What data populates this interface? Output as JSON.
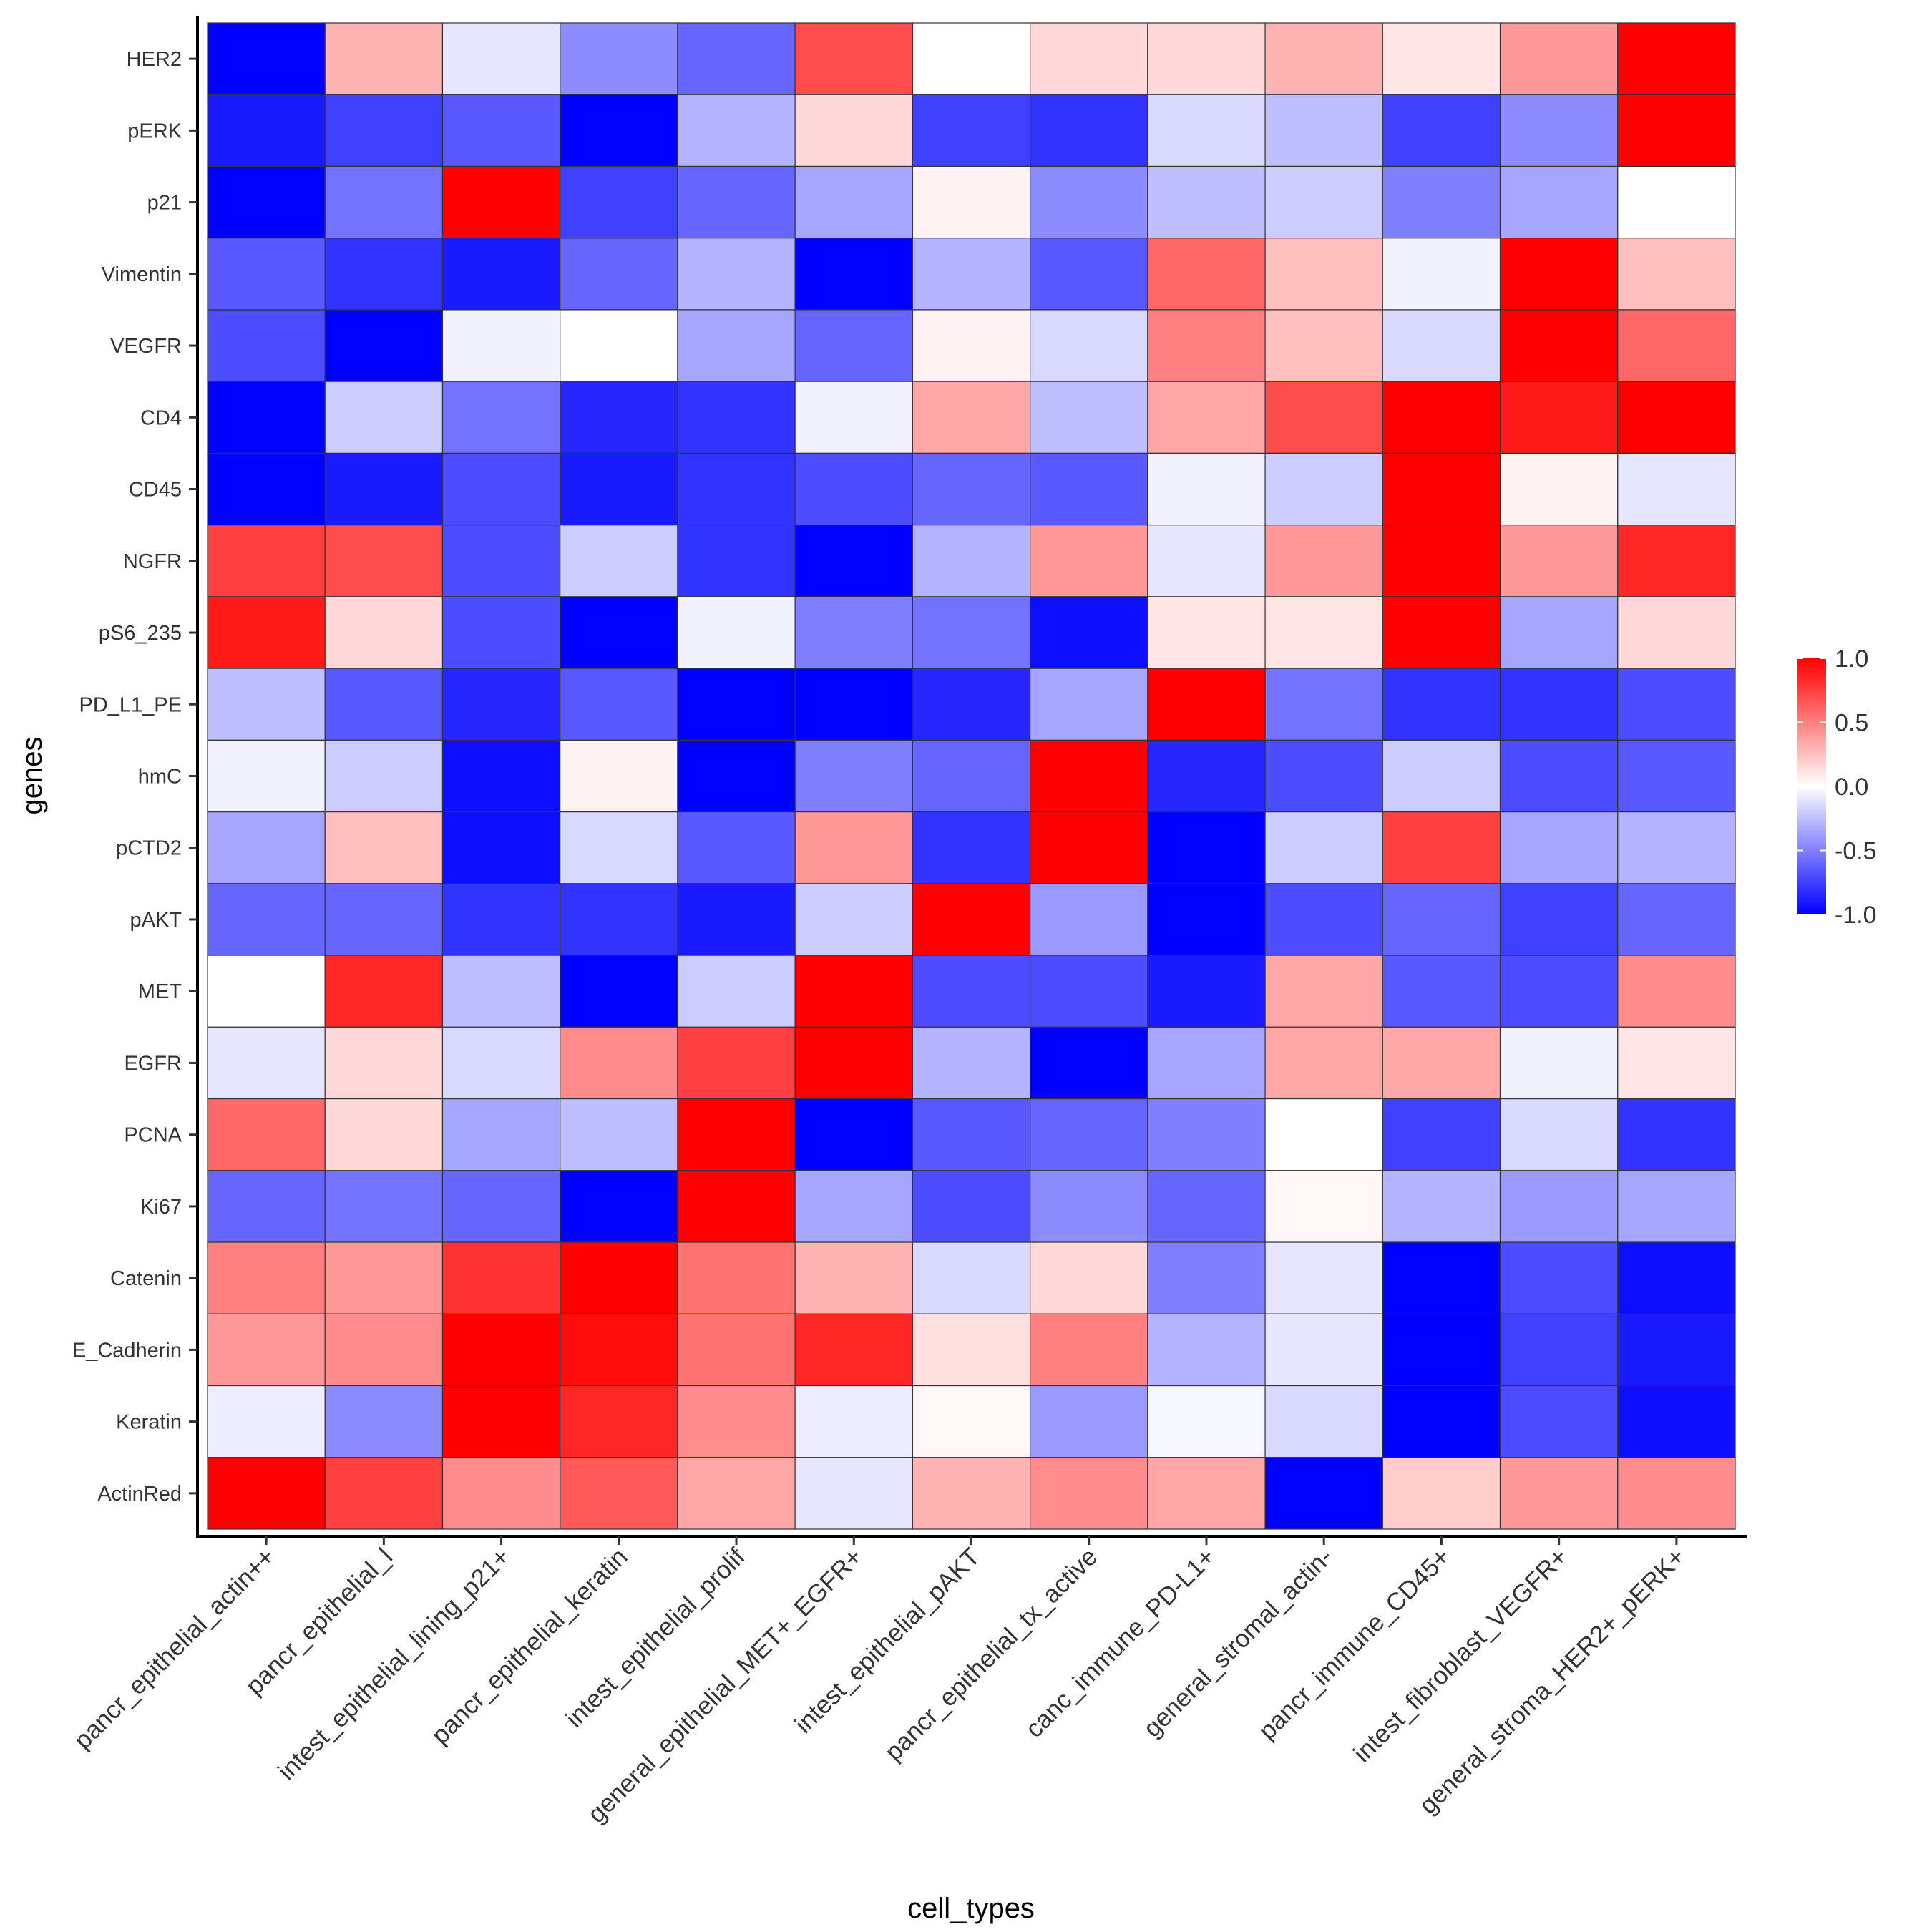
{
  "chart_data": {
    "type": "heatmap",
    "title": "",
    "xlabel": "cell_types",
    "ylabel": "genes",
    "columns": [
      "pancr_epithelial_actin++",
      "pancr_epithelial_l",
      "intest_epithelial_lining_p21+",
      "pancr_epithelial_keratin",
      "intest_epithelial_prolif",
      "general_epithelial_MET+_EGFR+",
      "intest_epithelial_pAKT",
      "pancr_epithelial_tx_active",
      "canc_immune_PD-L1+",
      "general_stromal_actin-",
      "pancr_immune_CD45+",
      "intest_fibroblast_VEGFR+",
      "general_stroma_HER2+_pERK+"
    ],
    "rows": [
      "HER2",
      "pERK",
      "p21",
      "Vimentin",
      "VEGFR",
      "CD4",
      "CD45",
      "NGFR",
      "pS6_235",
      "PD_L1_PE",
      "hmC",
      "pCTD2",
      "pAKT",
      "MET",
      "EGFR",
      "PCNA",
      "Ki67",
      "Catenin",
      "E_Cadherin",
      "Keratin",
      "ActinRed"
    ],
    "values": [
      [
        -1.0,
        0.3,
        -0.1,
        -0.45,
        -0.6,
        0.7,
        0.0,
        0.15,
        0.15,
        0.3,
        0.1,
        0.4,
        1.0
      ],
      [
        -0.9,
        -0.75,
        -0.65,
        -1.0,
        -0.3,
        0.15,
        -0.75,
        -0.8,
        -0.15,
        -0.25,
        -0.75,
        -0.45,
        1.0
      ],
      [
        -1.0,
        -0.55,
        1.0,
        -0.75,
        -0.6,
        -0.35,
        0.05,
        -0.45,
        -0.25,
        -0.2,
        -0.5,
        -0.35,
        0.0
      ],
      [
        -0.65,
        -0.8,
        -0.9,
        -0.6,
        -0.3,
        -1.0,
        -0.3,
        -0.65,
        0.6,
        0.25,
        -0.05,
        1.0,
        0.25
      ],
      [
        -0.7,
        -1.0,
        -0.05,
        0.0,
        -0.35,
        -0.6,
        0.05,
        -0.15,
        0.5,
        0.25,
        -0.15,
        1.0,
        0.6
      ],
      [
        -1.0,
        -0.2,
        -0.55,
        -0.85,
        -0.8,
        -0.05,
        0.35,
        -0.25,
        0.35,
        0.7,
        1.0,
        0.9,
        1.0
      ],
      [
        -1.0,
        -0.9,
        -0.7,
        -0.9,
        -0.8,
        -0.7,
        -0.6,
        -0.65,
        -0.05,
        -0.2,
        1.0,
        0.05,
        -0.1
      ],
      [
        0.75,
        0.7,
        -0.7,
        -0.2,
        -0.8,
        -1.0,
        -0.3,
        0.4,
        -0.1,
        0.4,
        1.0,
        0.4,
        0.85
      ],
      [
        0.9,
        0.15,
        -0.7,
        -1.0,
        -0.05,
        -0.5,
        -0.55,
        -0.95,
        0.1,
        0.1,
        1.0,
        -0.35,
        0.15
      ],
      [
        -0.25,
        -0.65,
        -0.85,
        -0.65,
        -1.0,
        -1.0,
        -0.85,
        -0.35,
        1.0,
        -0.55,
        -0.8,
        -0.8,
        -0.7
      ],
      [
        -0.05,
        -0.2,
        -0.95,
        0.05,
        -1.0,
        -0.5,
        -0.6,
        1.0,
        -0.85,
        -0.7,
        -0.2,
        -0.7,
        -0.65
      ],
      [
        -0.35,
        0.25,
        -0.95,
        -0.15,
        -0.65,
        0.4,
        -0.8,
        1.0,
        -1.0,
        -0.2,
        0.75,
        -0.35,
        -0.3
      ],
      [
        -0.6,
        -0.6,
        -0.8,
        -0.8,
        -0.9,
        -0.2,
        1.0,
        -0.4,
        -1.0,
        -0.7,
        -0.6,
        -0.75,
        -0.6
      ],
      [
        0.0,
        0.85,
        -0.25,
        -1.0,
        -0.2,
        1.0,
        -0.7,
        -0.7,
        -0.9,
        0.35,
        -0.65,
        -0.7,
        0.45
      ],
      [
        -0.1,
        0.15,
        -0.15,
        0.45,
        0.75,
        1.0,
        -0.3,
        -1.0,
        -0.35,
        0.35,
        0.35,
        -0.05,
        0.1
      ],
      [
        0.6,
        0.15,
        -0.35,
        -0.25,
        1.0,
        -1.0,
        -0.65,
        -0.6,
        -0.5,
        0.0,
        -0.75,
        -0.15,
        -0.8
      ],
      [
        -0.6,
        -0.55,
        -0.6,
        -1.0,
        1.0,
        -0.35,
        -0.7,
        -0.45,
        -0.6,
        0.03,
        -0.3,
        -0.4,
        -0.35
      ],
      [
        0.5,
        0.4,
        0.8,
        1.0,
        0.55,
        0.3,
        -0.15,
        0.15,
        -0.5,
        -0.1,
        -1.0,
        -0.7,
        -0.95
      ],
      [
        0.4,
        0.45,
        1.0,
        0.95,
        0.55,
        0.85,
        0.12,
        0.5,
        -0.3,
        -0.1,
        -1.0,
        -0.75,
        -0.9
      ],
      [
        -0.07,
        -0.45,
        1.0,
        0.85,
        0.45,
        -0.07,
        0.03,
        -0.4,
        -0.03,
        -0.15,
        -1.0,
        -0.7,
        -0.95
      ],
      [
        1.0,
        0.75,
        0.45,
        0.65,
        0.35,
        -0.1,
        0.3,
        0.45,
        0.35,
        -1.0,
        0.2,
        0.4,
        0.45
      ]
    ],
    "color_scale": {
      "low": "#0000FF",
      "mid": "#FFFFFF",
      "high": "#FF0000",
      "limits": [
        -1.0,
        1.0
      ],
      "breaks": [
        "1.0",
        "0.5",
        "0.0",
        "-0.5",
        "-1.0"
      ]
    },
    "legend_position": "right",
    "grid": false
  }
}
